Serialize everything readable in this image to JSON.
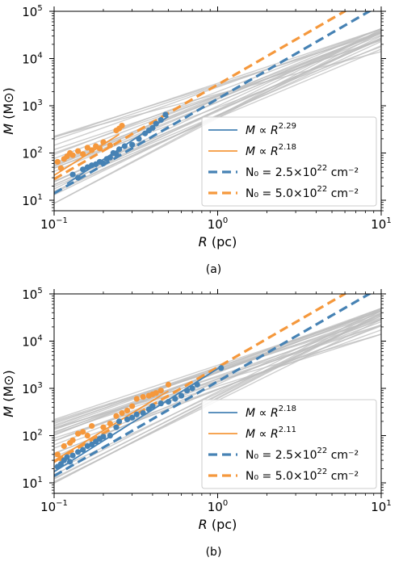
{
  "chart_data": [
    {
      "type": "scatter",
      "caption": "(a)",
      "xlabel_sym": "R",
      "xlabel_unit": " (pc)",
      "ylabel_sym": "M",
      "ylabel_unit": " (M⊙)",
      "xscale": "log",
      "yscale": "log",
      "xlim": [
        0.1,
        10
      ],
      "ylim": [
        6,
        100000
      ],
      "xticks": [
        {
          "base": "10",
          "exp": "−1",
          "v": 0.1
        },
        {
          "base": "10",
          "exp": "0",
          "v": 1
        },
        {
          "base": "10",
          "exp": "1",
          "v": 10
        }
      ],
      "yticks": [
        {
          "base": "10",
          "exp": "1",
          "v": 10
        },
        {
          "base": "10",
          "exp": "2",
          "v": 100
        },
        {
          "base": "10",
          "exp": "3",
          "v": 1000
        },
        {
          "base": "10",
          "exp": "4",
          "v": 10000
        },
        {
          "base": "10",
          "exp": "5",
          "v": 100000
        }
      ],
      "legend_position": "lower-right",
      "colors": {
        "blue": "#4682b4",
        "orange": "#f5983c",
        "gray": "#bdbdbd"
      },
      "legend": [
        {
          "kind": "line",
          "color": "#4682b4",
          "pre": "M ∝ R",
          "sup": "2.29",
          "post": ""
        },
        {
          "kind": "line",
          "color": "#f5983c",
          "pre": "M ∝ R",
          "sup": "2.18",
          "post": ""
        },
        {
          "kind": "dash",
          "color": "#4682b4",
          "pre": "N₀ = 2.5×10",
          "sup": "22",
          "post": " cm⁻²"
        },
        {
          "kind": "dash",
          "color": "#f5983c",
          "pre": "N₀ = 5.0×10",
          "sup": "22",
          "post": " cm⁻²"
        }
      ],
      "reference_lines": [
        {
          "color": "#4682b4",
          "x_range": [
            0.1,
            10
          ],
          "A": 1400,
          "k": 2
        },
        {
          "color": "#f5983c",
          "x_range": [
            0.1,
            10
          ],
          "A": 2800,
          "k": 2
        }
      ],
      "fits": [
        {
          "color": "#4682b4",
          "x_range": [
            0.12,
            0.5
          ],
          "A": 2900,
          "k": 2.29
        },
        {
          "color": "#f5983c",
          "x_range": [
            0.1,
            0.25
          ],
          "A": 5100,
          "k": 2.18
        }
      ],
      "gray_fan": {
        "count": 28,
        "x_range": [
          0.1,
          10
        ],
        "seed": 7,
        "at10_range": [
          14000,
          45000
        ],
        "at01_range": [
          7,
          300
        ]
      },
      "series": [
        {
          "color": "#f5983c",
          "x": [
            0.105,
            0.11,
            0.115,
            0.12,
            0.125,
            0.13,
            0.14,
            0.15,
            0.16,
            0.17,
            0.18,
            0.19,
            0.2,
            0.22,
            0.24,
            0.25,
            0.26
          ],
          "y": [
            65,
            48,
            75,
            85,
            100,
            90,
            110,
            95,
            130,
            115,
            140,
            125,
            170,
            145,
            300,
            330,
            380
          ]
        },
        {
          "color": "#4682b4",
          "x": [
            0.13,
            0.14,
            0.15,
            0.16,
            0.17,
            0.18,
            0.19,
            0.2,
            0.21,
            0.22,
            0.23,
            0.24,
            0.25,
            0.27,
            0.3,
            0.33,
            0.36,
            0.38,
            0.4,
            0.42,
            0.45,
            0.48
          ],
          "y": [
            35,
            30,
            45,
            50,
            55,
            58,
            65,
            60,
            75,
            80,
            100,
            95,
            120,
            140,
            150,
            200,
            260,
            300,
            340,
            420,
            500,
            650
          ]
        }
      ]
    },
    {
      "type": "scatter",
      "caption": "(b)",
      "xlabel_sym": "R",
      "xlabel_unit": " (pc)",
      "ylabel_sym": "M",
      "ylabel_unit": " (M⊙)",
      "xscale": "log",
      "yscale": "log",
      "xlim": [
        0.1,
        10
      ],
      "ylim": [
        6,
        100000
      ],
      "xticks": [
        {
          "base": "10",
          "exp": "−1",
          "v": 0.1
        },
        {
          "base": "10",
          "exp": "0",
          "v": 1
        },
        {
          "base": "10",
          "exp": "1",
          "v": 10
        }
      ],
      "yticks": [
        {
          "base": "10",
          "exp": "1",
          "v": 10
        },
        {
          "base": "10",
          "exp": "2",
          "v": 100
        },
        {
          "base": "10",
          "exp": "3",
          "v": 1000
        },
        {
          "base": "10",
          "exp": "4",
          "v": 10000
        },
        {
          "base": "10",
          "exp": "5",
          "v": 100000
        }
      ],
      "legend_position": "lower-right",
      "colors": {
        "blue": "#4682b4",
        "orange": "#f5983c",
        "gray": "#bdbdbd"
      },
      "legend": [
        {
          "kind": "line",
          "color": "#4682b4",
          "pre": "M ∝ R",
          "sup": "2.18",
          "post": ""
        },
        {
          "kind": "line",
          "color": "#f5983c",
          "pre": "M ∝ R",
          "sup": "2.11",
          "post": ""
        },
        {
          "kind": "dash",
          "color": "#4682b4",
          "pre": "N₀ = 2.5×10",
          "sup": "22",
          "post": " cm⁻²"
        },
        {
          "kind": "dash",
          "color": "#f5983c",
          "pre": "N₀ = 5.0×10",
          "sup": "22",
          "post": " cm⁻²"
        }
      ],
      "reference_lines": [
        {
          "color": "#4682b4",
          "x_range": [
            0.1,
            10
          ],
          "A": 1400,
          "k": 2
        },
        {
          "color": "#f5983c",
          "x_range": [
            0.1,
            10
          ],
          "A": 2800,
          "k": 2
        }
      ],
      "fits": [
        {
          "color": "#4682b4",
          "x_range": [
            0.1,
            1.05
          ],
          "A": 2600,
          "k": 2.18
        },
        {
          "color": "#f5983c",
          "x_range": [
            0.1,
            0.5
          ],
          "A": 3800,
          "k": 2.11
        }
      ],
      "gray_fan": {
        "count": 30,
        "x_range": [
          0.1,
          10
        ],
        "seed": 13,
        "at10_range": [
          14000,
          50000
        ],
        "at01_range": [
          7,
          250
        ]
      },
      "series": [
        {
          "color": "#f5983c",
          "x": [
            0.105,
            0.11,
            0.115,
            0.125,
            0.13,
            0.14,
            0.15,
            0.16,
            0.17,
            0.2,
            0.22,
            0.24,
            0.26,
            0.28,
            0.3,
            0.32,
            0.35,
            0.38,
            0.4,
            0.42,
            0.45,
            0.5
          ],
          "y": [
            40,
            33,
            60,
            70,
            80,
            110,
            120,
            100,
            160,
            150,
            180,
            260,
            300,
            340,
            420,
            600,
            660,
            700,
            750,
            800,
            900,
            1200
          ]
        },
        {
          "color": "#4682b4",
          "x": [
            0.105,
            0.11,
            0.115,
            0.12,
            0.125,
            0.13,
            0.14,
            0.15,
            0.16,
            0.17,
            0.18,
            0.19,
            0.2,
            0.22,
            0.24,
            0.25,
            0.28,
            0.3,
            0.32,
            0.35,
            0.38,
            0.4,
            0.45,
            0.5,
            0.55,
            0.6,
            0.65,
            0.7,
            0.75,
            1.05
          ],
          "y": [
            22,
            25,
            30,
            35,
            28,
            38,
            45,
            50,
            60,
            65,
            75,
            85,
            95,
            100,
            150,
            200,
            220,
            240,
            280,
            300,
            360,
            420,
            480,
            520,
            600,
            700,
            900,
            1000,
            1200,
            2700
          ]
        }
      ]
    }
  ]
}
